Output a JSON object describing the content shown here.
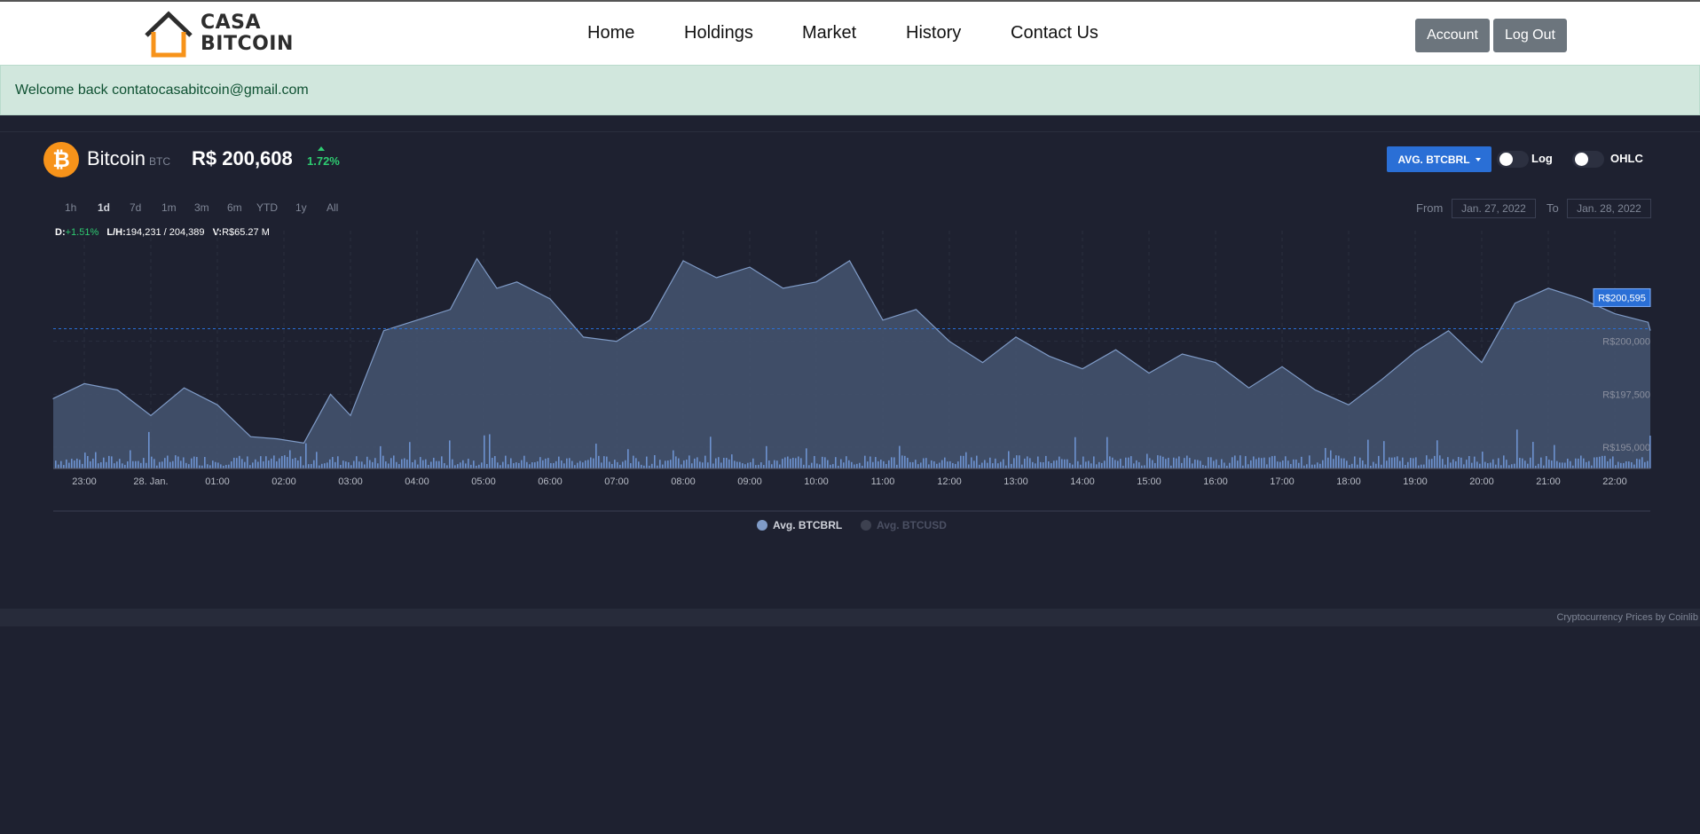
{
  "brand": {
    "line1": "CASA",
    "line2": "BITCOIN"
  },
  "nav": {
    "items": [
      "Home",
      "Holdings",
      "Market",
      "History",
      "Contact Us"
    ]
  },
  "buttons": {
    "account": "Account",
    "logout": "Log Out"
  },
  "alert": {
    "text": "Welcome back contatocasabitcoin@gmail.com"
  },
  "coin": {
    "icon": "bitcoin-icon",
    "name": "Bitcoin",
    "symbol": "BTC",
    "price": "R$ 200,608",
    "change": "1.72%"
  },
  "controls": {
    "dropdown": "AVG. BTCBRL",
    "toggle_log": "Log",
    "toggle_ohlc": "OHLC",
    "ranges": [
      "1h",
      "1d",
      "7d",
      "1m",
      "3m",
      "6m",
      "YTD",
      "1y",
      "All"
    ],
    "active_range": "1d",
    "from_label": "From",
    "from_value": "Jan. 27, 2022",
    "to_label": "To",
    "to_value": "Jan. 28, 2022"
  },
  "stats": {
    "d_label": "D:",
    "d_value": "+1.51%",
    "lh_label": "L/H:",
    "lh_value": "194,231 / 204,389",
    "v_label": "V:",
    "v_value": "R$65.27 M"
  },
  "legend": {
    "series1": "Avg. BTCBRL",
    "series2": "Avg. BTCUSD"
  },
  "footer": {
    "text": "Cryptocurrency Prices by Coinlib"
  },
  "colors": {
    "accent": "#2a6fd6",
    "up": "#2ecc71",
    "bitcoin": "#f7931a",
    "area": "#41506a",
    "line": "#7f9bc7"
  },
  "chart_data": {
    "type": "area",
    "x_ticks": [
      "23:00",
      "28. Jan.",
      "01:00",
      "02:00",
      "03:00",
      "04:00",
      "05:00",
      "06:00",
      "07:00",
      "08:00",
      "09:00",
      "10:00",
      "11:00",
      "12:00",
      "13:00",
      "14:00",
      "15:00",
      "16:00",
      "17:00",
      "18:00",
      "19:00",
      "20:00",
      "21:00",
      "22:00"
    ],
    "y_ticks": [
      "R$195,000",
      "R$197,500",
      "R$200,000"
    ],
    "y_tick_values": [
      195000,
      197500,
      200000
    ],
    "ylim": [
      194000,
      204800
    ],
    "current_label": "R$200,595",
    "current_value": 200595,
    "x": [
      22.5,
      23.0,
      23.5,
      24.0,
      24.5,
      25.0,
      25.5,
      25.9,
      26.3,
      26.7,
      27.0,
      27.5,
      28.0,
      28.5,
      28.9,
      29.2,
      29.5,
      30.0,
      30.5,
      31.0,
      31.5,
      32.0,
      32.5,
      33.0,
      33.5,
      34.0,
      34.5,
      35.0,
      35.5,
      36.0,
      36.5,
      37.0,
      37.5,
      38.0,
      38.5,
      39.0,
      39.5,
      40.0,
      40.5,
      41.0,
      41.5,
      42.0,
      42.5,
      43.0,
      43.5,
      44.0,
      44.5,
      45.0,
      45.5,
      46.0,
      46.5,
      47.0
    ],
    "values": [
      197300,
      198000,
      197700,
      196500,
      197800,
      197000,
      195500,
      195400,
      195200,
      197500,
      196500,
      200500,
      201000,
      201500,
      203900,
      202500,
      202800,
      202000,
      200200,
      200000,
      201000,
      203800,
      203000,
      203500,
      202500,
      202800,
      203800,
      201000,
      201500,
      200000,
      199000,
      200200,
      199300,
      198700,
      199600,
      198500,
      199400,
      199000,
      197800,
      198800,
      197700,
      197000,
      198200,
      199500,
      200500,
      199000,
      201800,
      202500,
      202000,
      201300,
      200900,
      200500
    ],
    "x_min": 22.5,
    "x_max": 47.0,
    "series": [
      {
        "name": "Avg. BTCBRL",
        "visible": true
      },
      {
        "name": "Avg. BTCUSD",
        "visible": false
      }
    ]
  }
}
